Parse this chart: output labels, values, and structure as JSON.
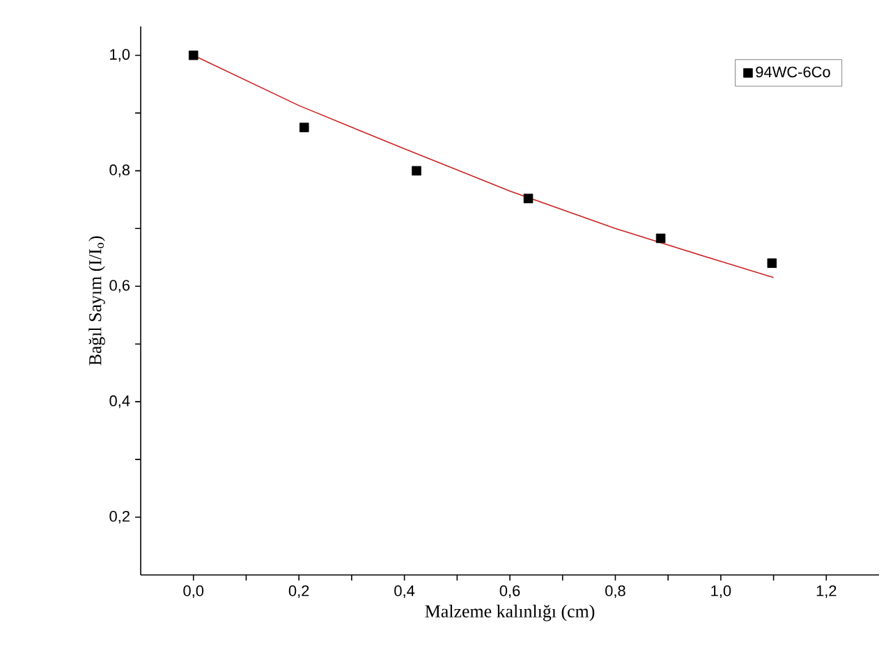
{
  "chart_data": {
    "type": "scatter",
    "xlabel": "Malzeme kalınlığı (cm)",
    "ylabel": "Bağıl Sayım (I/I$_{o}$)",
    "xlim": [
      -0.1,
      1.3
    ],
    "ylim": [
      0.1,
      1.05
    ],
    "xticks": [
      {
        "value": 0,
        "label": "0,0"
      },
      {
        "value": 0.1,
        "label": null
      },
      {
        "value": 0.2,
        "label": "0,2"
      },
      {
        "value": 0.3,
        "label": null
      },
      {
        "value": 0.4,
        "label": "0,4"
      },
      {
        "value": 0.5,
        "label": null
      },
      {
        "value": 0.6,
        "label": "0,6"
      },
      {
        "value": 0.7,
        "label": null
      },
      {
        "value": 0.8,
        "label": "0,8"
      },
      {
        "value": 0.9,
        "label": null
      },
      {
        "value": 1.0,
        "label": "1,0"
      },
      {
        "value": 1.1,
        "label": null
      },
      {
        "value": 1.2,
        "label": "1,2"
      }
    ],
    "yticks": [
      {
        "value": 0.2,
        "label": "0,2"
      },
      {
        "value": 0.3,
        "label": null
      },
      {
        "value": 0.4,
        "label": "0,4"
      },
      {
        "value": 0.5,
        "label": null
      },
      {
        "value": 0.6,
        "label": "0,6"
      },
      {
        "value": 0.7,
        "label": null
      },
      {
        "value": 0.8,
        "label": "0,8"
      },
      {
        "value": 0.9,
        "label": null
      },
      {
        "value": 1.0,
        "label": "1,0"
      }
    ],
    "series": [
      {
        "name": "94WC-6Co",
        "marker": "square",
        "color": "#000000",
        "x": [
          0,
          0.21,
          0.423,
          0.635,
          0.886,
          1.097
        ],
        "values": [
          1.0,
          0.875,
          0.8,
          0.752,
          0.683,
          0.64
        ]
      },
      {
        "type": "line",
        "marker": "none",
        "color": "#cc2222",
        "x": [
          0,
          0.2,
          0.4,
          0.6,
          0.8,
          1.0,
          1.1
        ],
        "values": [
          1.0,
          0.913,
          0.838,
          0.765,
          0.7,
          0.643,
          0.615
        ]
      }
    ],
    "legend": "top right",
    "grid": false
  }
}
